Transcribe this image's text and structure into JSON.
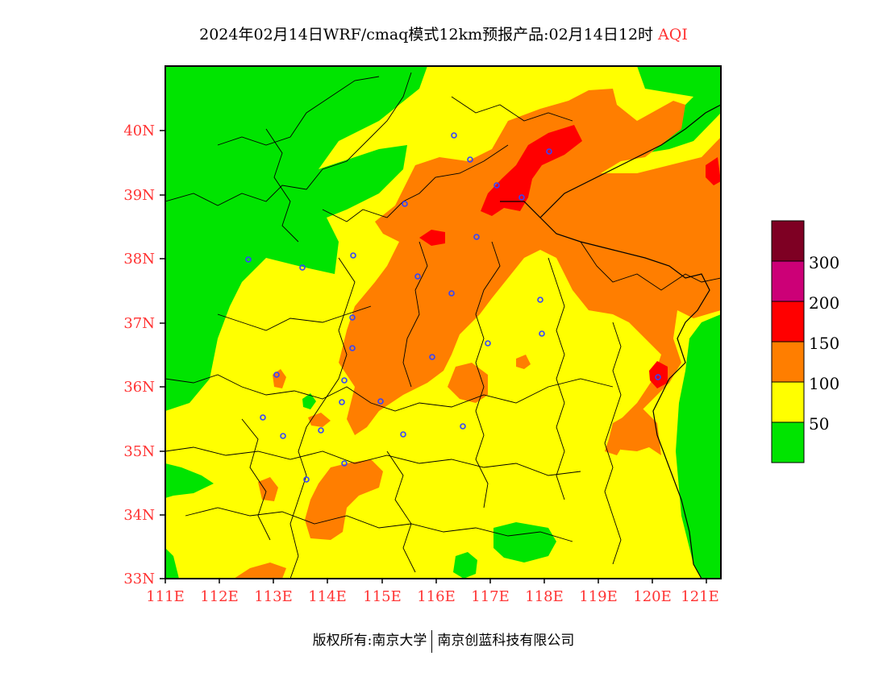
{
  "title": {
    "main": "2024年02月14日WRF/cmaq模式12km预报产品:02月14日12时",
    "variable": "AQI"
  },
  "map": {
    "lat_labels": [
      "40N",
      "39N",
      "38N",
      "37N",
      "36N",
      "35N",
      "34N",
      "33N"
    ],
    "lon_labels": [
      "111E",
      "112E",
      "113E",
      "114E",
      "115E",
      "116E",
      "117E",
      "118E",
      "119E",
      "120E",
      "121E"
    ],
    "colors": {
      "good": "#00e400",
      "moderate": "#ffff00",
      "usg": "#ff7e00",
      "unhealthy": "#ff0000",
      "very_unhealthy": "#cc0077",
      "hazardous": "#7e0023",
      "station": "#3344ff"
    }
  },
  "legend": {
    "labels": [
      "300",
      "200",
      "150",
      "100",
      "50"
    ],
    "colors": [
      "#7e0023",
      "#cc0077",
      "#ff0000",
      "#ff7e00",
      "#ffff00",
      "#00e400"
    ]
  },
  "footer": {
    "left": "版权所有:南京大学",
    "right": "南京创蓝科技有限公司"
  }
}
